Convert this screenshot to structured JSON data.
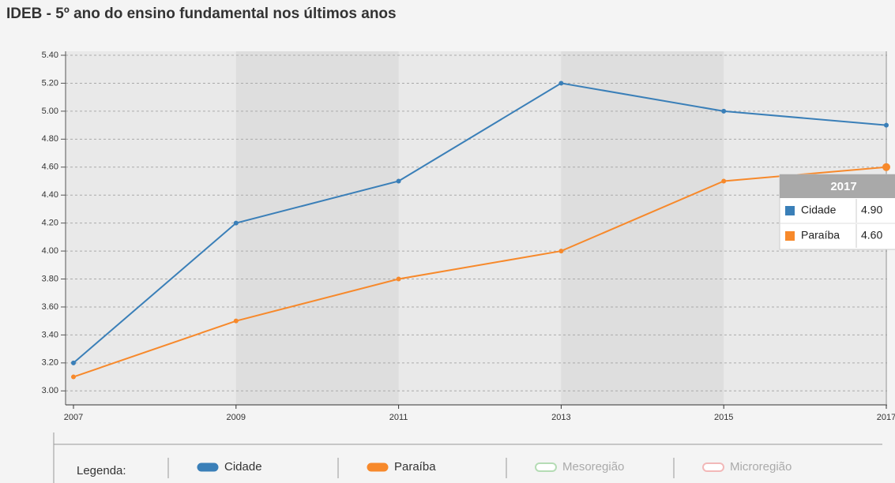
{
  "chart_data": {
    "type": "line",
    "title": "IDEB - 5º ano do ensino fundamental nos últimos anos",
    "x": [
      2007,
      2009,
      2011,
      2013,
      2015,
      2017
    ],
    "xlim": [
      2007,
      2017
    ],
    "xticks": [
      2007,
      2009,
      2011,
      2013,
      2015,
      2017
    ],
    "ylim": [
      2.9,
      5.4
    ],
    "yticks": [
      {
        "value": 3.0,
        "label": "3.00"
      },
      {
        "value": 3.2,
        "label": "3.20"
      },
      {
        "value": 3.4,
        "label": "3.40"
      },
      {
        "value": 3.6,
        "label": "3.60"
      },
      {
        "value": 3.8,
        "label": "3.80"
      },
      {
        "value": 4.0,
        "label": "4.00"
      },
      {
        "value": 4.2,
        "label": "4.20"
      },
      {
        "value": 4.4,
        "label": "4.40"
      },
      {
        "value": 4.6,
        "label": "4.60"
      },
      {
        "value": 4.8,
        "label": "4.80"
      },
      {
        "value": 5.0,
        "label": "5.00"
      },
      {
        "value": 5.2,
        "label": "5.20"
      },
      {
        "value": 5.4,
        "label": "5.40"
      }
    ],
    "grid": true,
    "series": [
      {
        "name": "Cidade",
        "color": "#3a7fb8",
        "values": [
          3.2,
          4.2,
          4.5,
          5.2,
          5.0,
          4.9
        ],
        "visible": true
      },
      {
        "name": "Paraíba",
        "color": "#f7892b",
        "values": [
          3.1,
          3.5,
          3.8,
          4.0,
          4.5,
          4.6
        ],
        "visible": true
      },
      {
        "name": "Mesoregião",
        "color": "#b5dcb5",
        "values": [
          null,
          null,
          null,
          null,
          null,
          null
        ],
        "visible": false
      },
      {
        "name": "Microregião",
        "color": "#f2b8b8",
        "values": [
          null,
          null,
          null,
          null,
          null,
          null
        ],
        "visible": false
      }
    ],
    "legend": {
      "label": "Legenda:"
    },
    "tooltip": {
      "x": 2017,
      "values": [
        {
          "value": 4.9,
          "label": "4.90"
        },
        {
          "value": 4.6,
          "label": "4.60"
        }
      ]
    }
  }
}
